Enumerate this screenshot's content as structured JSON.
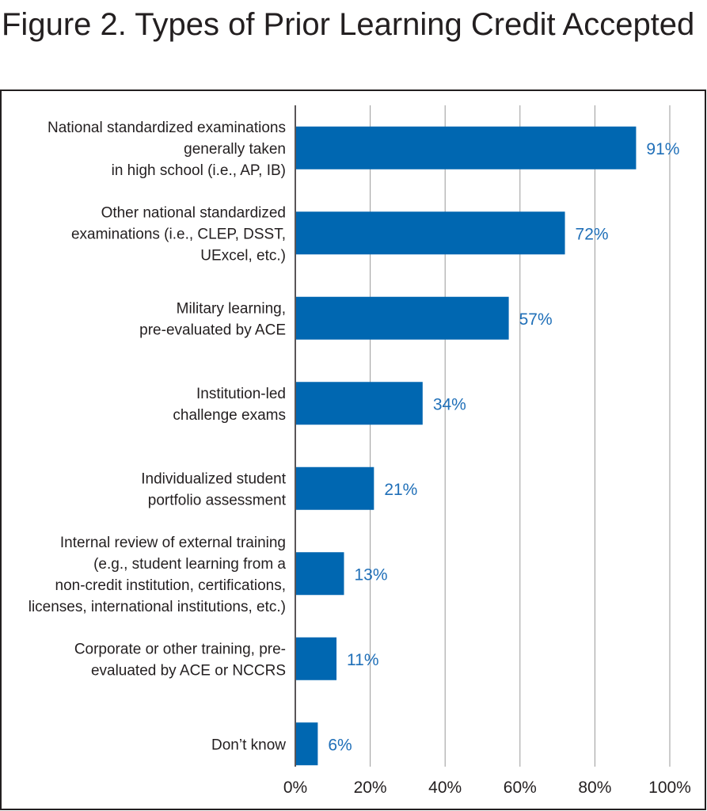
{
  "chart_data": {
    "type": "bar",
    "orientation": "horizontal",
    "title": "Figure 2. Types of Prior Learning Credit Accepted",
    "categories": [
      [
        "National standardized examinations",
        "generally taken",
        "in high school (i.e., AP, IB)"
      ],
      [
        "Other national standardized",
        "examinations (i.e., CLEP, DSST,",
        "UExcel, etc.)"
      ],
      [
        "Military learning,",
        "pre-evaluated by ACE"
      ],
      [
        "Institution-led",
        "challenge exams"
      ],
      [
        "Individualized student",
        "portfolio assessment"
      ],
      [
        "Internal review of external training",
        "(e.g., student learning from a",
        "non-credit institution, certifications,",
        "licenses, international institutions, etc.)"
      ],
      [
        "Corporate or other training, pre-",
        "evaluated by ACE or NCCRS"
      ],
      [
        "Don’t know"
      ]
    ],
    "values": [
      91,
      72,
      57,
      34,
      21,
      13,
      11,
      6
    ],
    "value_labels": [
      "91%",
      "72%",
      "57%",
      "34%",
      "21%",
      "13%",
      "11%",
      "6%"
    ],
    "xlim": [
      0,
      100
    ],
    "x_ticks": [
      0,
      20,
      40,
      60,
      80,
      100
    ],
    "x_tick_labels": [
      "0%",
      "20%",
      "40%",
      "60%",
      "80%",
      "100%"
    ],
    "grid": true,
    "colors": {
      "bar": "#0067b1",
      "value_label": "#1f6fb8",
      "grid": "#9a9a9a",
      "frame": "#231f20",
      "text": "#231f20"
    }
  }
}
